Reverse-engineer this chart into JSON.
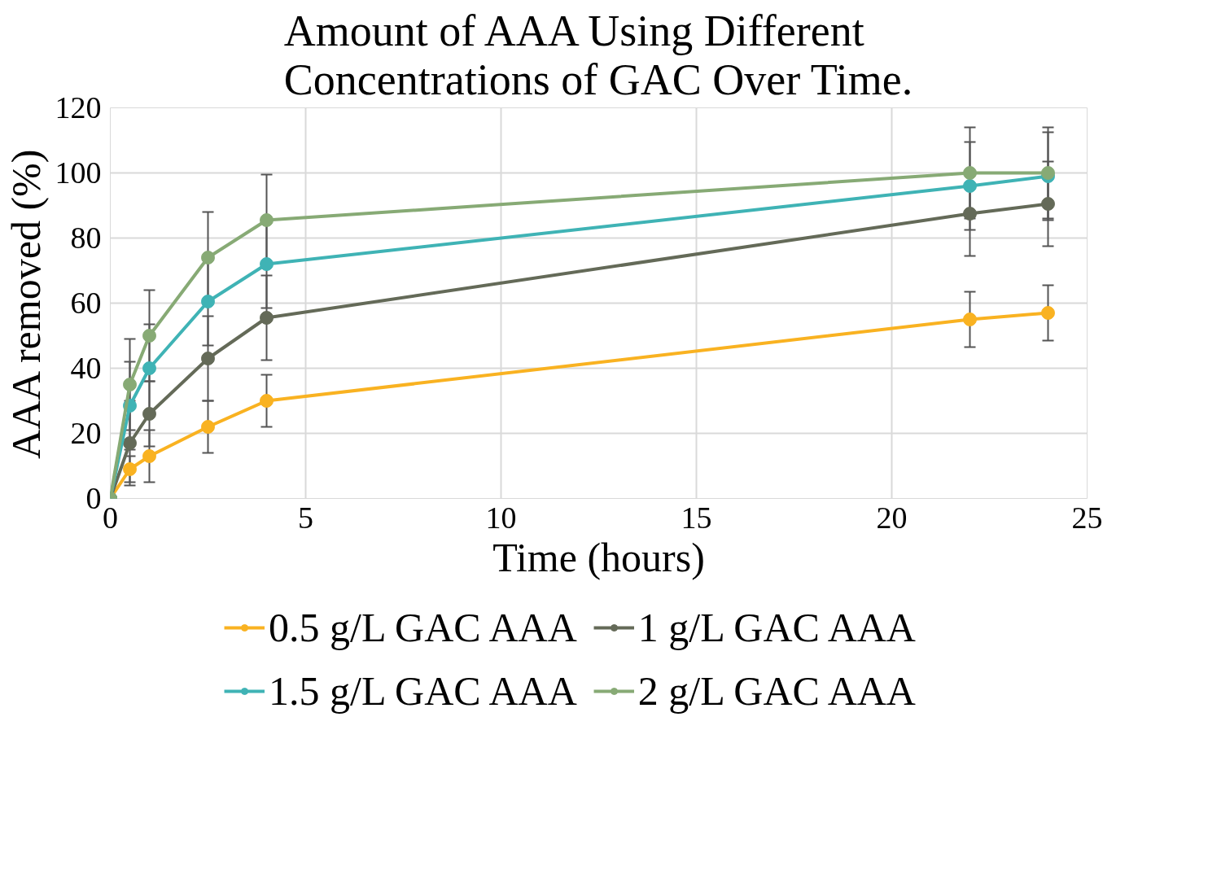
{
  "chart_data": {
    "type": "line",
    "title": "Amount of AAA Using Different Concentrations of GAC Over Time.",
    "xlabel": "Time (hours)",
    "ylabel": "AAA removed (%)",
    "x": [
      0,
      0.5,
      1,
      2.5,
      4,
      22,
      24
    ],
    "series": [
      {
        "name": "0.5 g/L GAC AAA",
        "color": "#f9b221",
        "values": [
          0,
          9,
          13,
          22,
          30,
          55,
          57
        ],
        "errors": [
          null,
          4,
          8,
          8,
          8,
          8.5,
          8.5
        ]
      },
      {
        "name": "1 g/L GAC AAA",
        "color": "#646a58",
        "values": [
          0,
          17,
          26,
          43,
          55.5,
          87.5,
          90.5
        ],
        "errors": [
          null,
          13,
          10,
          13,
          13,
          13,
          13
        ]
      },
      {
        "name": "1.5 g/L GAC AAA",
        "color": "#3fb3b5",
        "values": [
          0,
          28.5,
          40,
          60.5,
          72,
          96,
          99
        ],
        "errors": [
          null,
          13.5,
          13.5,
          13.5,
          13.5,
          13.5,
          13.5
        ]
      },
      {
        "name": "2 g/L GAC AAA",
        "color": "#87aa75",
        "values": [
          0,
          35,
          50,
          74,
          85.5,
          100,
          100
        ],
        "errors": [
          null,
          14,
          14,
          14,
          14,
          14,
          14
        ]
      }
    ],
    "xlim": [
      0,
      25
    ],
    "xticks": [
      0,
      5,
      10,
      15,
      20,
      25
    ],
    "ylim": [
      0,
      120
    ],
    "yticks": [
      0,
      20,
      40,
      60,
      80,
      100,
      120
    ],
    "grid": true,
    "legend": "bottom",
    "marker": "circle",
    "line_style": "solid"
  }
}
